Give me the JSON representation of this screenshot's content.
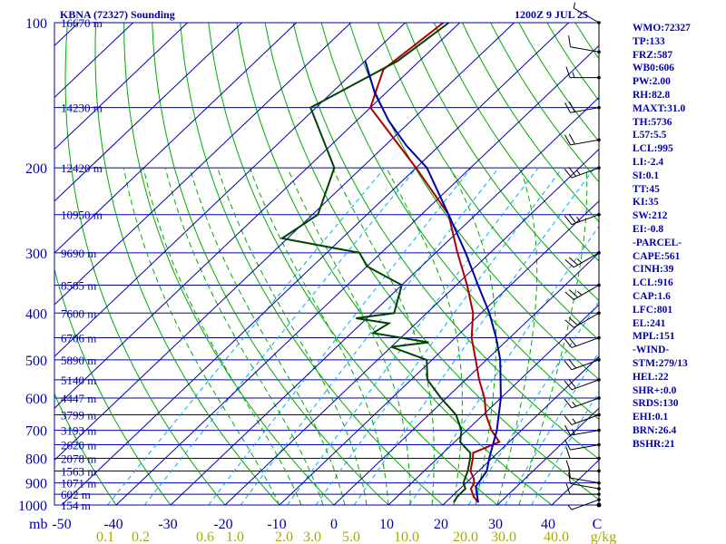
{
  "header": {
    "station": "KBNA (72327) Sounding",
    "time": "1200Z  9 JUL 25"
  },
  "indices": [
    "WMO:72327",
    "TP:133",
    "FRZ:587",
    "WB0:606",
    "PW:2.00",
    "RH:82.8",
    "MAXT:31.0",
    "TH:5736",
    "L57:5.5",
    "LCL:995",
    "LI:-2.4",
    "SI:0.1",
    "TT:45",
    "KI:35",
    "SW:212",
    "EI:-0.8",
    "-PARCEL-",
    "CAPE:561",
    "CINH:39",
    "LCL:916",
    "CAP:1.6",
    "LFC:801",
    "EL:241",
    "MPL:151",
    "-WIND-",
    "STM:279/13",
    "HEL:22",
    "SHR+:0.0",
    "SRDS:130",
    "EHI:0.1",
    "BRN:26.4",
    "BSHR:21"
  ],
  "axes": {
    "pressure_unit": "mb",
    "pressure_ticks": [
      "100",
      "200",
      "300",
      "400",
      "500",
      "600",
      "700",
      "800",
      "900",
      "1000"
    ],
    "temperature_ticks": [
      "-50",
      "-40",
      "-30",
      "-20",
      "-10",
      "0",
      "10",
      "20",
      "30",
      "40",
      "C"
    ],
    "mixing_ratio_ticks": [
      "0.1",
      "0.2",
      "0.6",
      "1.0",
      "2.0",
      "3.0",
      "5.0",
      "10.0",
      "20.0",
      "30.0",
      "40.0",
      "g/kg"
    ]
  },
  "colors": {
    "isobar": "#0000aa",
    "isotherm": "#0000aa",
    "dry_adiabat": "#00aa00",
    "moist_adiabat": "#00aa00",
    "mixing_ratio": "#00aaff",
    "temperature": "#aa0000",
    "dewpoint": "#004400",
    "parcel": "#0000aa",
    "wind": "#000000"
  },
  "chart_data": {
    "type": "line",
    "title": "KBNA (72327) Sounding",
    "xlabel": "C",
    "ylabel": "mb",
    "ylim": [
      1000,
      100
    ],
    "xlim": [
      -50,
      50
    ],
    "heights": [
      {
        "p": 1000,
        "label": "154 m"
      },
      {
        "p": 950,
        "label": "602 m"
      },
      {
        "p": 900,
        "label": "1071 m"
      },
      {
        "p": 850,
        "label": "1563 m"
      },
      {
        "p": 800,
        "label": "2078 m"
      },
      {
        "p": 750,
        "label": "2620 m"
      },
      {
        "p": 700,
        "label": "3193 m"
      },
      {
        "p": 650,
        "label": "3799 m"
      },
      {
        "p": 600,
        "label": "4447 m"
      },
      {
        "p": 550,
        "label": "5140 m"
      },
      {
        "p": 500,
        "label": "5890 m"
      },
      {
        "p": 450,
        "label": "6706 m"
      },
      {
        "p": 400,
        "label": "7600 m"
      },
      {
        "p": 350,
        "label": "8585 m"
      },
      {
        "p": 300,
        "label": "9690 m"
      },
      {
        "p": 250,
        "label": "10950 m"
      },
      {
        "p": 200,
        "label": "12420 m"
      },
      {
        "p": 150,
        "label": "14230 m"
      },
      {
        "p": 100,
        "label": "16670 m"
      }
    ],
    "series": [
      {
        "name": "Temperature",
        "key": "temperature",
        "points": [
          [
            988,
            26
          ],
          [
            960,
            24
          ],
          [
            925,
            22
          ],
          [
            900,
            21.5
          ],
          [
            880,
            20.5
          ],
          [
            850,
            18.5
          ],
          [
            800,
            16.5
          ],
          [
            780,
            15.5
          ],
          [
            740,
            18.2
          ],
          [
            700,
            14.5
          ],
          [
            650,
            10.5
          ],
          [
            600,
            7
          ],
          [
            550,
            2.5
          ],
          [
            500,
            -2
          ],
          [
            450,
            -7
          ],
          [
            400,
            -11.5
          ],
          [
            350,
            -18
          ],
          [
            300,
            -26
          ],
          [
            250,
            -35
          ],
          [
            200,
            -50
          ],
          [
            150,
            -70
          ],
          [
            125,
            -75
          ],
          [
            100,
            -73
          ]
        ]
      },
      {
        "name": "Dewpoint",
        "key": "dewpoint",
        "points": [
          [
            988,
            21.5
          ],
          [
            960,
            21
          ],
          [
            925,
            21
          ],
          [
            900,
            19.5
          ],
          [
            850,
            18
          ],
          [
            800,
            16
          ],
          [
            780,
            15
          ],
          [
            740,
            11
          ],
          [
            700,
            9
          ],
          [
            650,
            5
          ],
          [
            600,
            -1
          ],
          [
            550,
            -7
          ],
          [
            500,
            -11
          ],
          [
            470,
            -20
          ],
          [
            460,
            -14
          ],
          [
            440,
            -26
          ],
          [
            420,
            -25
          ],
          [
            410,
            -32
          ],
          [
            400,
            -26
          ],
          [
            350,
            -30
          ],
          [
            320,
            -40
          ],
          [
            300,
            -44
          ],
          [
            280,
            -61
          ],
          [
            250,
            -59
          ],
          [
            200,
            -65
          ],
          [
            150,
            -81
          ],
          [
            120,
            -74
          ],
          [
            100,
            -72
          ]
        ]
      },
      {
        "name": "Parcel",
        "key": "parcel",
        "points": [
          [
            988,
            26
          ],
          [
            916,
            22.5
          ],
          [
            850,
            21.5
          ],
          [
            800,
            19.5
          ],
          [
            700,
            15.5
          ],
          [
            600,
            10
          ],
          [
            500,
            2.5
          ],
          [
            450,
            -2.5
          ],
          [
            400,
            -8.5
          ],
          [
            350,
            -16
          ],
          [
            300,
            -24.5
          ],
          [
            250,
            -35
          ],
          [
            200,
            -48
          ],
          [
            180,
            -56
          ],
          [
            160,
            -64
          ],
          [
            140,
            -72
          ],
          [
            120,
            -80
          ]
        ]
      }
    ],
    "wind": [
      [
        1000,
        0,
        0
      ],
      [
        975,
        250,
        5
      ],
      [
        950,
        270,
        10
      ],
      [
        925,
        280,
        10
      ],
      [
        900,
        280,
        10
      ],
      [
        850,
        270,
        10
      ],
      [
        800,
        270,
        10
      ],
      [
        750,
        260,
        10
      ],
      [
        700,
        260,
        15
      ],
      [
        650,
        250,
        15
      ],
      [
        600,
        250,
        15
      ],
      [
        550,
        250,
        20
      ],
      [
        500,
        250,
        20
      ],
      [
        450,
        250,
        20
      ],
      [
        400,
        240,
        20
      ],
      [
        350,
        240,
        25
      ],
      [
        300,
        240,
        25
      ],
      [
        250,
        250,
        25
      ],
      [
        200,
        250,
        25
      ],
      [
        175,
        260,
        20
      ],
      [
        150,
        260,
        20
      ],
      [
        130,
        270,
        15
      ],
      [
        115,
        280,
        10
      ],
      [
        100,
        300,
        5
      ]
    ]
  }
}
